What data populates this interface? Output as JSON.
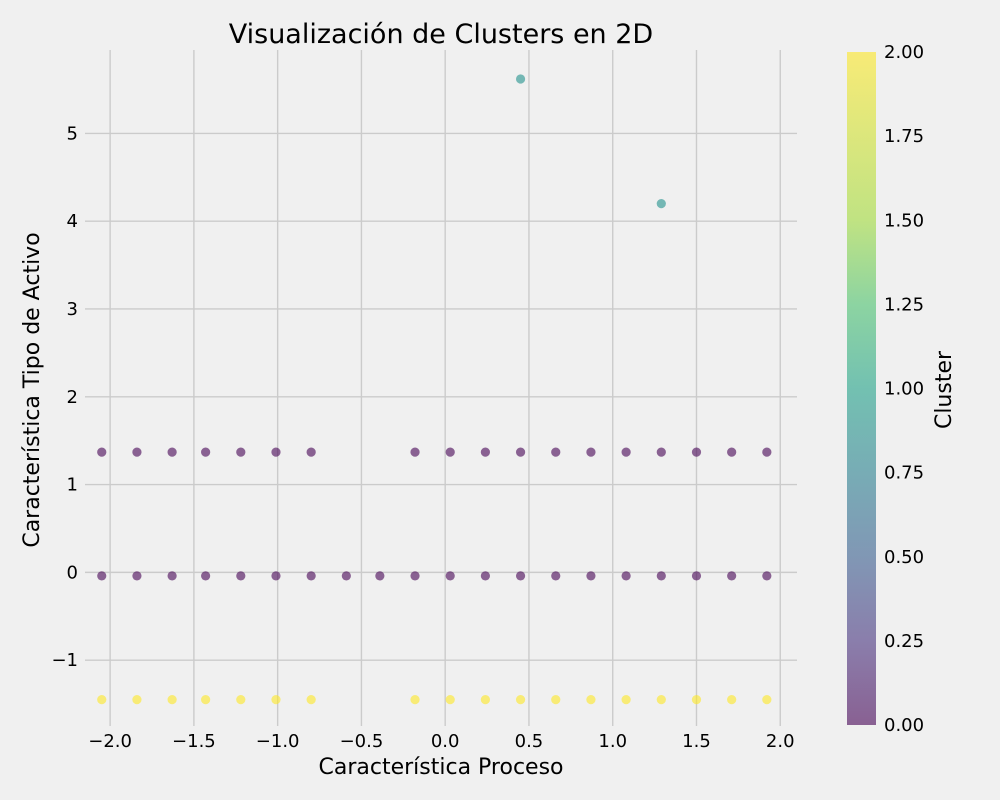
{
  "chart_data": {
    "type": "scatter",
    "title": "Visualización de Clusters en 2D",
    "xlabel": "Característica Proceso",
    "ylabel": "Característica Tipo de Activo",
    "xlim": [
      -2.15,
      2.1
    ],
    "ylim": [
      -1.75,
      5.95
    ],
    "xticks": [
      -2.0,
      -1.5,
      -1.0,
      -0.5,
      0.0,
      0.5,
      1.0,
      1.5,
      2.0
    ],
    "xtick_labels": [
      "−2.0",
      "−1.5",
      "−1.0",
      "−0.5",
      "0.0",
      "0.5",
      "1.0",
      "1.5",
      "2.0"
    ],
    "yticks": [
      -1,
      0,
      1,
      2,
      3,
      4,
      5
    ],
    "ytick_labels": [
      "−1",
      "0",
      "1",
      "2",
      "3",
      "4",
      "5"
    ],
    "grid": true,
    "colorbar": {
      "label": "Cluster",
      "range": [
        0,
        2
      ],
      "ticks": [
        0.0,
        0.25,
        0.5,
        0.75,
        1.0,
        1.25,
        1.5,
        1.75,
        2.0
      ],
      "tick_labels": [
        "0.00",
        "0.25",
        "0.50",
        "0.75",
        "1.00",
        "1.25",
        "1.50",
        "1.75",
        "2.00"
      ],
      "colormap": "viridis",
      "alpha": 0.6
    },
    "series": [
      {
        "cluster": 0,
        "color": "#440154",
        "points": [
          [
            -2.05,
            1.37
          ],
          [
            -1.84,
            1.37
          ],
          [
            -1.63,
            1.37
          ],
          [
            -1.43,
            1.37
          ],
          [
            -1.22,
            1.37
          ],
          [
            -1.01,
            1.37
          ],
          [
            -0.8,
            1.37
          ],
          [
            -0.18,
            1.37
          ],
          [
            0.03,
            1.37
          ],
          [
            0.24,
            1.37
          ],
          [
            0.45,
            1.37
          ],
          [
            0.66,
            1.37
          ],
          [
            0.87,
            1.37
          ],
          [
            1.08,
            1.37
          ],
          [
            1.29,
            1.37
          ],
          [
            1.5,
            1.37
          ],
          [
            1.71,
            1.37
          ],
          [
            1.92,
            1.37
          ],
          [
            -2.05,
            -0.04
          ],
          [
            -1.84,
            -0.04
          ],
          [
            -1.63,
            -0.04
          ],
          [
            -1.43,
            -0.04
          ],
          [
            -1.22,
            -0.04
          ],
          [
            -1.01,
            -0.04
          ],
          [
            -0.8,
            -0.04
          ],
          [
            -0.59,
            -0.04
          ],
          [
            -0.39,
            -0.04
          ],
          [
            -0.18,
            -0.04
          ],
          [
            0.03,
            -0.04
          ],
          [
            0.24,
            -0.04
          ],
          [
            0.45,
            -0.04
          ],
          [
            0.66,
            -0.04
          ],
          [
            0.87,
            -0.04
          ],
          [
            1.08,
            -0.04
          ],
          [
            1.29,
            -0.04
          ],
          [
            1.5,
            -0.04
          ],
          [
            1.71,
            -0.04
          ],
          [
            1.92,
            -0.04
          ]
        ]
      },
      {
        "cluster": 1,
        "color": "#21918c",
        "points": [
          [
            0.45,
            5.62
          ],
          [
            1.29,
            4.2
          ]
        ]
      },
      {
        "cluster": 2,
        "color": "#fde725",
        "points": [
          [
            -2.05,
            -1.45
          ],
          [
            -1.84,
            -1.45
          ],
          [
            -1.63,
            -1.45
          ],
          [
            -1.43,
            -1.45
          ],
          [
            -1.22,
            -1.45
          ],
          [
            -1.01,
            -1.45
          ],
          [
            -0.8,
            -1.45
          ],
          [
            -0.18,
            -1.45
          ],
          [
            0.03,
            -1.45
          ],
          [
            0.24,
            -1.45
          ],
          [
            0.45,
            -1.45
          ],
          [
            0.66,
            -1.45
          ],
          [
            0.87,
            -1.45
          ],
          [
            1.08,
            -1.45
          ],
          [
            1.29,
            -1.45
          ],
          [
            1.5,
            -1.45
          ],
          [
            1.71,
            -1.45
          ],
          [
            1.92,
            -1.45
          ]
        ]
      }
    ]
  }
}
